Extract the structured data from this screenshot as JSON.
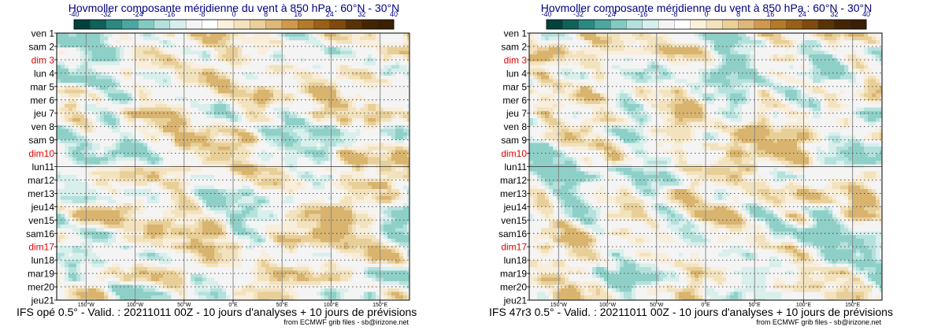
{
  "chart_data": [
    {
      "type": "heatmap",
      "title": "Hovmoller composante méridienne du vent à 850 hPa : 60°N - 30°N",
      "colorbar": {
        "ticks": [
          "-40",
          "-32",
          "-24",
          "-16",
          "-8",
          "0",
          "8",
          "16",
          "24",
          "32",
          "40"
        ],
        "range": [
          -40,
          40
        ],
        "colors": [
          "#01423c",
          "#0f6159",
          "#2a8a82",
          "#4ba79f",
          "#82cbc2",
          "#b4e1dc",
          "#d6efec",
          "#f4f4f4",
          "#ffffff",
          "#fbf1dc",
          "#f4e2bd",
          "#ebd09a",
          "#deb878",
          "#cf9a4e",
          "#b57a2a",
          "#9a6018",
          "#7f4a0d",
          "#5a3305",
          "#432600",
          "#3a2004"
        ]
      },
      "y_labels": [
        "ven 1",
        "sam 2",
        "dim 3",
        "lun 4",
        "mar 5",
        "mer 6",
        "jeu 7",
        "ven 8",
        "sam 9",
        "dim10",
        "lun11",
        "mar12",
        "mer13",
        "jeu14",
        "ven15",
        "sam16",
        "dim17",
        "lun18",
        "mar19",
        "mer20",
        "jeu21"
      ],
      "sunday_indices": [
        2,
        9,
        16
      ],
      "x_ticks": [
        "150°W",
        "100°W",
        "50°W",
        "0°E",
        "50°E",
        "100°E",
        "150°E"
      ],
      "x_tick_values": [
        -150,
        -100,
        -50,
        0,
        50,
        100,
        150
      ],
      "x_range": [
        -180,
        180
      ],
      "analysis_split_index": 10,
      "footer": "IFS opé 0.5° - Valid. : 20211011 00Z - 10 jours d'analyses + 10 jours de prévisions",
      "credit": "from ECMWF grib files - sb@irizone.net"
    },
    {
      "type": "heatmap",
      "title": "Hovmoller composante méridienne du vent à 850 hPa : 60°N - 30°N",
      "colorbar": {
        "ticks": [
          "-40",
          "-32",
          "-24",
          "-16",
          "-8",
          "0",
          "8",
          "16",
          "24",
          "32",
          "40"
        ],
        "range": [
          -40,
          40
        ],
        "colors": [
          "#01423c",
          "#0f6159",
          "#2a8a82",
          "#4ba79f",
          "#82cbc2",
          "#b4e1dc",
          "#d6efec",
          "#f4f4f4",
          "#ffffff",
          "#fbf1dc",
          "#f4e2bd",
          "#ebd09a",
          "#deb878",
          "#cf9a4e",
          "#b57a2a",
          "#9a6018",
          "#7f4a0d",
          "#5a3305",
          "#432600",
          "#3a2004"
        ]
      },
      "y_labels": [
        "ven 1",
        "sam 2",
        "dim 3",
        "lun 4",
        "mar 5",
        "mer 6",
        "jeu 7",
        "ven 8",
        "sam 9",
        "dim10",
        "lun11",
        "mar12",
        "mer13",
        "jeu14",
        "ven15",
        "sam16",
        "dim17",
        "lun18",
        "mar19",
        "mer20",
        "jeu21"
      ],
      "sunday_indices": [
        2,
        9,
        16
      ],
      "x_ticks": [
        "150°W",
        "100°W",
        "50°W",
        "0°E",
        "50°E",
        "100°E",
        "150°E"
      ],
      "x_tick_values": [
        -150,
        -100,
        -50,
        0,
        50,
        100,
        150
      ],
      "x_range": [
        -180,
        180
      ],
      "analysis_split_index": 10,
      "footer": "IFS 47r3 0.5° - Valid. : 20211011 00Z - 10 jours d'analyses + 10 jours de prévisions",
      "credit": "from ECMWF grib files - sb@irizone.net"
    }
  ]
}
